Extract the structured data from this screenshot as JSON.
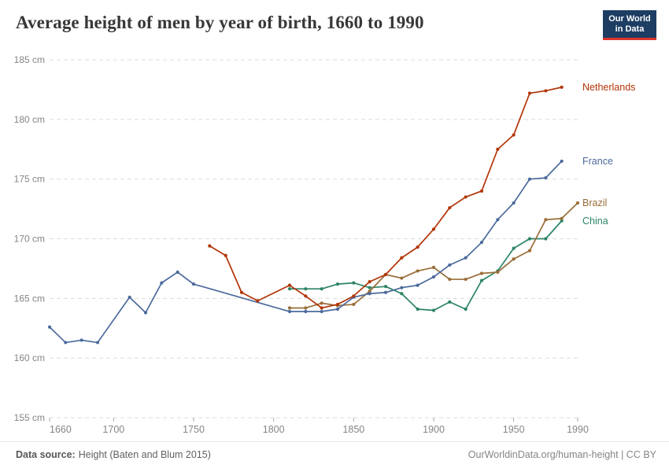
{
  "header": {
    "title": "Average height of men by year of birth, 1660 to 1990",
    "logo": {
      "line1": "Our World",
      "line2": "in Data"
    }
  },
  "chart_data": {
    "type": "line",
    "title": "Average height of men by year of birth, 1660 to 1990",
    "xlabel": "",
    "ylabel": "",
    "x_axis": {
      "min": 1660,
      "max": 1990,
      "ticks": [
        1660,
        1700,
        1750,
        1800,
        1850,
        1900,
        1950,
        1990
      ]
    },
    "y_axis": {
      "min": 155,
      "max": 185,
      "unit": "cm",
      "ticks": [
        155,
        160,
        165,
        170,
        175,
        180,
        185
      ]
    },
    "grid": "dashed-horizontal",
    "legend_position": "right-end-labels",
    "series": [
      {
        "name": "China",
        "color": "#2c8465",
        "points": [
          [
            1810,
            165.8
          ],
          [
            1820,
            165.8
          ],
          [
            1830,
            165.8
          ],
          [
            1840,
            166.2
          ],
          [
            1850,
            166.3
          ],
          [
            1860,
            165.9
          ],
          [
            1870,
            166.0
          ],
          [
            1880,
            165.4
          ],
          [
            1890,
            164.1
          ],
          [
            1900,
            164.0
          ],
          [
            1910,
            164.7
          ],
          [
            1920,
            164.1
          ],
          [
            1930,
            166.5
          ],
          [
            1940,
            167.3
          ],
          [
            1950,
            169.2
          ],
          [
            1960,
            170.0
          ],
          [
            1970,
            170.0
          ],
          [
            1980,
            171.5
          ]
        ]
      },
      {
        "name": "Brazil",
        "color": "#996d39",
        "points": [
          [
            1810,
            164.2
          ],
          [
            1820,
            164.2
          ],
          [
            1830,
            164.6
          ],
          [
            1840,
            164.4
          ],
          [
            1850,
            164.5
          ],
          [
            1860,
            165.6
          ],
          [
            1870,
            167.0
          ],
          [
            1880,
            166.7
          ],
          [
            1890,
            167.3
          ],
          [
            1900,
            167.6
          ],
          [
            1910,
            166.6
          ],
          [
            1920,
            166.6
          ],
          [
            1930,
            167.1
          ],
          [
            1940,
            167.2
          ],
          [
            1950,
            168.3
          ],
          [
            1960,
            169.0
          ],
          [
            1970,
            171.6
          ],
          [
            1980,
            171.7
          ],
          [
            1990,
            173.0
          ]
        ]
      },
      {
        "name": "France",
        "color": "#4c6a9c",
        "points": [
          [
            1660,
            162.6
          ],
          [
            1670,
            161.3
          ],
          [
            1680,
            161.5
          ],
          [
            1690,
            161.3
          ],
          [
            1710,
            165.1
          ],
          [
            1720,
            163.8
          ],
          [
            1730,
            166.3
          ],
          [
            1740,
            167.2
          ],
          [
            1750,
            166.2
          ],
          [
            1810,
            163.9
          ],
          [
            1820,
            163.9
          ],
          [
            1830,
            163.9
          ],
          [
            1840,
            164.1
          ],
          [
            1850,
            165.1
          ],
          [
            1860,
            165.4
          ],
          [
            1870,
            165.5
          ],
          [
            1880,
            165.9
          ],
          [
            1890,
            166.1
          ],
          [
            1900,
            166.8
          ],
          [
            1910,
            167.8
          ],
          [
            1920,
            168.4
          ],
          [
            1930,
            169.7
          ],
          [
            1940,
            171.6
          ],
          [
            1950,
            173.0
          ],
          [
            1960,
            175.0
          ],
          [
            1970,
            175.1
          ],
          [
            1980,
            176.5
          ]
        ]
      },
      {
        "name": "Netherlands",
        "color": "#b13507",
        "points": [
          [
            1760,
            169.4
          ],
          [
            1770,
            168.6
          ],
          [
            1780,
            165.5
          ],
          [
            1790,
            164.8
          ],
          [
            1810,
            166.1
          ],
          [
            1820,
            165.2
          ],
          [
            1830,
            164.2
          ],
          [
            1840,
            164.5
          ],
          [
            1850,
            165.2
          ],
          [
            1860,
            166.4
          ],
          [
            1870,
            167.0
          ],
          [
            1880,
            168.4
          ],
          [
            1890,
            169.3
          ],
          [
            1900,
            170.8
          ],
          [
            1910,
            172.6
          ],
          [
            1920,
            173.5
          ],
          [
            1930,
            174.0
          ],
          [
            1940,
            177.5
          ],
          [
            1950,
            178.7
          ],
          [
            1960,
            182.2
          ],
          [
            1970,
            182.4
          ],
          [
            1980,
            182.7
          ]
        ]
      }
    ]
  },
  "footer": {
    "datasource_label": "Data source:",
    "datasource_value": "Height (Baten and Blum 2015)",
    "link": "OurWorldinData.org/human-height | CC BY"
  },
  "style": {
    "axis_text_color": "#858585",
    "gridline_color": "#dcdcdc",
    "tick_color": "#a8a8a8"
  }
}
